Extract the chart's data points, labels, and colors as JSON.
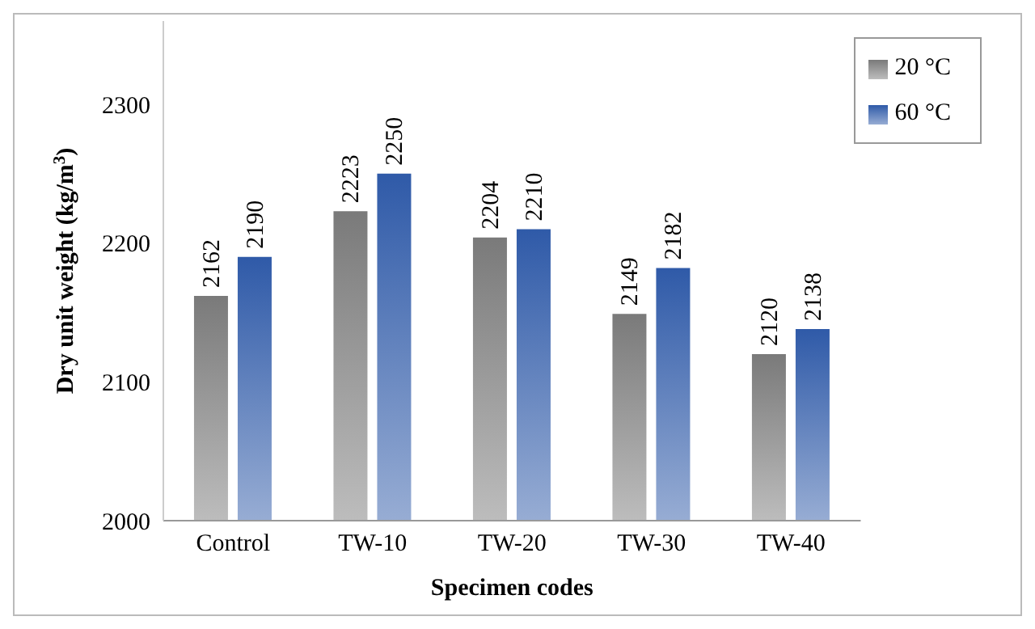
{
  "chart_data": {
    "type": "bar",
    "xlabel": "Specimen codes",
    "ylabel": "Dry unit weight (kg/m$^{3}$)",
    "categories": [
      "Control",
      "TW-10",
      "TW-20",
      "TW-30",
      "TW-40"
    ],
    "series": [
      {
        "name": "20 °C",
        "color": "#7a7a7a",
        "values": [
          2162,
          2223,
          2204,
          2149,
          2120
        ]
      },
      {
        "name": "60 °C",
        "color": "#2f5aa8",
        "values": [
          2190,
          2250,
          2210,
          2182,
          2138
        ]
      }
    ],
    "ylim": [
      2000,
      2360
    ],
    "yticks": [
      2000,
      2100,
      2200,
      2300
    ],
    "data_labels": true,
    "legend": "top right",
    "grid": false
  }
}
